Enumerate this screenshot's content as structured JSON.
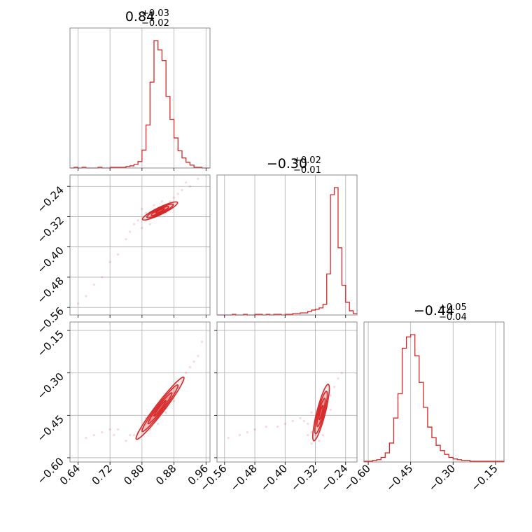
{
  "chart_data": {
    "type": "corner",
    "color": "#d62728",
    "grid": true,
    "parameters": [
      {
        "median": 0.84,
        "range": [
          0.62,
          0.97
        ]
      },
      {
        "median": -0.3,
        "range": [
          -0.58,
          -0.21
        ]
      },
      {
        "median": -0.44,
        "range": [
          -0.615,
          -0.12
        ]
      }
    ],
    "titles": [
      {
        "main": "0.84",
        "plus": "+0.03",
        "minus": "−0.02"
      },
      {
        "main": "−0.30",
        "plus": "+0.02",
        "minus": "−0.01"
      },
      {
        "main": "−0.44",
        "plus": "+0.05",
        "minus": "−0.04"
      }
    ],
    "ticks": [
      {
        "values": [
          0.64,
          0.72,
          0.8,
          0.88,
          0.96
        ],
        "labels": [
          "0.64",
          "0.72",
          "0.80",
          "0.88",
          "0.96"
        ]
      },
      {
        "values": [
          -0.56,
          -0.48,
          -0.4,
          -0.32,
          -0.24
        ],
        "labels": [
          "−0.56",
          "−0.48",
          "−0.40",
          "−0.32",
          "−0.24"
        ]
      },
      {
        "values": [
          -0.6,
          -0.45,
          -0.3,
          -0.15
        ],
        "labels": [
          "−0.60",
          "−0.45",
          "−0.30",
          "−0.15"
        ]
      }
    ],
    "histograms": [
      {
        "bin_edges": [
          0.62,
          0.63,
          0.64,
          0.65,
          0.66,
          0.67,
          0.68,
          0.69,
          0.7,
          0.71,
          0.72,
          0.73,
          0.74,
          0.75,
          0.76,
          0.77,
          0.78,
          0.79,
          0.8,
          0.81,
          0.82,
          0.83,
          0.84,
          0.85,
          0.86,
          0.87,
          0.88,
          0.89,
          0.9,
          0.91,
          0.92,
          0.93,
          0.94,
          0.95,
          0.96,
          0.97
        ],
        "counts": [
          0,
          1,
          0,
          1,
          0,
          0,
          0,
          1,
          0,
          0,
          1,
          1,
          1,
          1,
          2,
          3,
          5,
          9,
          25,
          60,
          120,
          178,
          165,
          150,
          100,
          68,
          42,
          24,
          14,
          8,
          4,
          1,
          1,
          0,
          0
        ]
      },
      {
        "bin_edges": [
          -0.58,
          -0.57,
          -0.56,
          -0.55,
          -0.54,
          -0.53,
          -0.52,
          -0.51,
          -0.5,
          -0.49,
          -0.48,
          -0.47,
          -0.46,
          -0.45,
          -0.44,
          -0.43,
          -0.42,
          -0.41,
          -0.4,
          -0.39,
          -0.38,
          -0.37,
          -0.36,
          -0.35,
          -0.34,
          -0.33,
          -0.32,
          -0.31,
          -0.3,
          -0.29,
          -0.28,
          -0.27,
          -0.26,
          -0.25,
          -0.24,
          -0.23,
          -0.22,
          -0.21
        ],
        "counts": [
          0,
          0,
          0,
          0,
          1,
          0,
          0,
          1,
          0,
          0,
          1,
          1,
          0,
          1,
          0,
          1,
          1,
          0,
          1,
          1,
          2,
          2,
          3,
          3,
          5,
          7,
          8,
          10,
          15,
          58,
          170,
          180,
          95,
          42,
          18,
          6,
          2,
          1
        ]
      },
      {
        "bin_edges": [
          -0.615,
          -0.6,
          -0.585,
          -0.57,
          -0.555,
          -0.54,
          -0.525,
          -0.51,
          -0.495,
          -0.48,
          -0.465,
          -0.45,
          -0.435,
          -0.42,
          -0.405,
          -0.39,
          -0.375,
          -0.36,
          -0.345,
          -0.33,
          -0.315,
          -0.3,
          -0.285,
          -0.27,
          -0.255,
          -0.24,
          -0.225,
          -0.21,
          -0.195,
          -0.18,
          -0.165,
          -0.15,
          -0.135,
          -0.12
        ],
        "counts": [
          1,
          1,
          2,
          3,
          6,
          12,
          25,
          58,
          90,
          150,
          165,
          168,
          140,
          105,
          72,
          46,
          32,
          22,
          15,
          10,
          6,
          4,
          3,
          2,
          2,
          1,
          1,
          1,
          1,
          1,
          1,
          1,
          1
        ]
      }
    ],
    "contours_2d": [
      {
        "panel": "param2-vs-param1",
        "x_center": 0.845,
        "y_center": -0.305,
        "x_sigma": 0.022,
        "y_sigma": 0.012,
        "correlation": 0.9,
        "levels_sigma": [
          0.5,
          1.0,
          1.5,
          2.0
        ]
      },
      {
        "panel": "param3-vs-param1",
        "x_center": 0.845,
        "y_center": -0.425,
        "x_sigma": 0.03,
        "y_sigma": 0.055,
        "correlation": 0.97,
        "levels_sigma": [
          0.5,
          1.0,
          1.5,
          2.0
        ]
      },
      {
        "panel": "param3-vs-param2",
        "x_center": -0.305,
        "y_center": -0.44,
        "x_sigma": 0.011,
        "y_sigma": 0.05,
        "correlation": 0.85,
        "levels_sigma": [
          0.5,
          1.0,
          1.5,
          2.0
        ]
      }
    ],
    "sample_clouds": [
      {
        "panel": "param2-vs-param1",
        "points": [
          [
            0.82,
            -0.31
          ],
          [
            0.81,
            -0.33
          ],
          [
            0.83,
            -0.32
          ],
          [
            0.86,
            -0.29
          ],
          [
            0.87,
            -0.28
          ],
          [
            0.89,
            -0.26
          ],
          [
            0.9,
            -0.25
          ],
          [
            0.79,
            -0.33
          ],
          [
            0.8,
            -0.35
          ],
          [
            0.84,
            -0.31
          ],
          [
            0.85,
            -0.3
          ],
          [
            0.88,
            -0.27
          ],
          [
            0.83,
            -0.29
          ],
          [
            0.81,
            -0.31
          ],
          [
            0.76,
            -0.38
          ],
          [
            0.74,
            -0.42
          ],
          [
            0.72,
            -0.44
          ],
          [
            0.7,
            -0.48
          ],
          [
            0.68,
            -0.5
          ],
          [
            0.66,
            -0.53
          ],
          [
            0.64,
            -0.55
          ],
          [
            0.92,
            -0.24
          ],
          [
            0.94,
            -0.22
          ],
          [
            0.78,
            -0.34
          ],
          [
            0.86,
            -0.31
          ],
          [
            0.82,
            -0.34
          ],
          [
            0.8,
            -0.3
          ],
          [
            0.77,
            -0.36
          ],
          [
            0.91,
            -0.23
          ],
          [
            0.85,
            -0.28
          ]
        ]
      },
      {
        "panel": "param3-vs-param1",
        "points": [
          [
            0.8,
            -0.5
          ],
          [
            0.82,
            -0.47
          ],
          [
            0.84,
            -0.44
          ],
          [
            0.86,
            -0.41
          ],
          [
            0.88,
            -0.37
          ],
          [
            0.9,
            -0.33
          ],
          [
            0.92,
            -0.28
          ],
          [
            0.94,
            -0.24
          ],
          [
            0.95,
            -0.19
          ],
          [
            0.78,
            -0.52
          ],
          [
            0.76,
            -0.54
          ],
          [
            0.72,
            -0.5
          ],
          [
            0.7,
            -0.51
          ],
          [
            0.68,
            -0.52
          ],
          [
            0.66,
            -0.53
          ],
          [
            0.74,
            -0.5
          ],
          [
            0.81,
            -0.46
          ],
          [
            0.83,
            -0.45
          ],
          [
            0.85,
            -0.4
          ],
          [
            0.87,
            -0.39
          ],
          [
            0.79,
            -0.51
          ],
          [
            0.89,
            -0.35
          ],
          [
            0.91,
            -0.3
          ],
          [
            0.77,
            -0.52
          ],
          [
            0.73,
            -0.52
          ],
          [
            0.82,
            -0.5
          ],
          [
            0.86,
            -0.44
          ],
          [
            0.88,
            -0.4
          ],
          [
            0.93,
            -0.26
          ],
          [
            0.84,
            -0.48
          ]
        ]
      },
      {
        "panel": "param3-vs-param2",
        "points": [
          [
            -0.34,
            -0.48
          ],
          [
            -0.33,
            -0.51
          ],
          [
            -0.32,
            -0.52
          ],
          [
            -0.31,
            -0.5
          ],
          [
            -0.3,
            -0.46
          ],
          [
            -0.29,
            -0.42
          ],
          [
            -0.28,
            -0.38
          ],
          [
            -0.27,
            -0.35
          ],
          [
            -0.26,
            -0.32
          ],
          [
            -0.25,
            -0.3
          ],
          [
            -0.33,
            -0.44
          ],
          [
            -0.35,
            -0.47
          ],
          [
            -0.38,
            -0.47
          ],
          [
            -0.4,
            -0.48
          ],
          [
            -0.42,
            -0.49
          ],
          [
            -0.45,
            -0.49
          ],
          [
            -0.48,
            -0.5
          ],
          [
            -0.5,
            -0.51
          ],
          [
            -0.52,
            -0.52
          ],
          [
            -0.55,
            -0.53
          ],
          [
            -0.36,
            -0.46
          ],
          [
            -0.31,
            -0.54
          ],
          [
            -0.3,
            -0.4
          ],
          [
            -0.29,
            -0.37
          ],
          [
            -0.33,
            -0.55
          ],
          [
            -0.32,
            -0.47
          ],
          [
            -0.31,
            -0.44
          ],
          [
            -0.28,
            -0.43
          ],
          [
            -0.3,
            -0.52
          ],
          [
            -0.34,
            -0.52
          ]
        ]
      }
    ]
  }
}
